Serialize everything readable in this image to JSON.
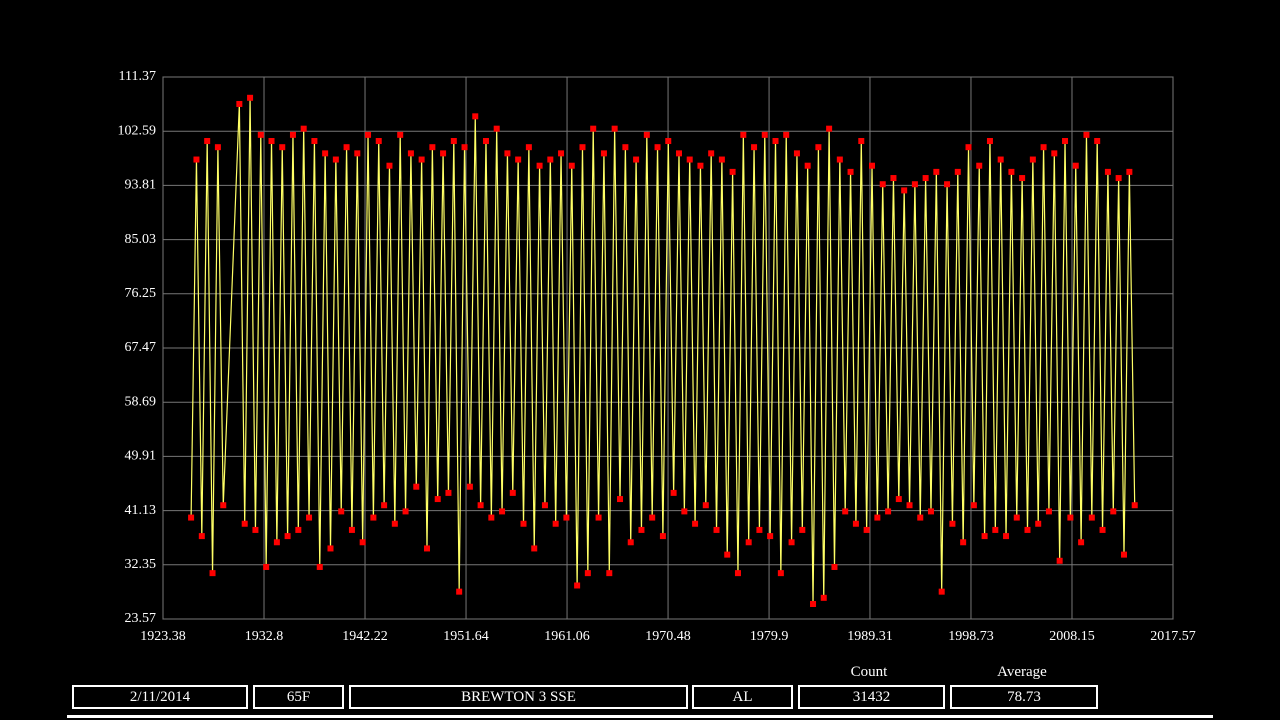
{
  "chart_data": {
    "type": "line",
    "x": [
      1926.0,
      1926.5,
      1927.0,
      1927.5,
      1928.0,
      1928.5,
      1929.0,
      1930.5,
      1931.0,
      1931.5,
      1932.0,
      1932.5,
      1933.0,
      1933.5,
      1934.0,
      1934.5,
      1935.0,
      1935.5,
      1936.0,
      1936.5,
      1937.0,
      1937.5,
      1938.0,
      1938.5,
      1939.0,
      1939.5,
      1940.0,
      1940.5,
      1941.0,
      1941.5,
      1942.0,
      1942.5,
      1943.0,
      1943.5,
      1944.0,
      1944.5,
      1945.0,
      1945.5,
      1946.0,
      1946.5,
      1947.0,
      1947.5,
      1948.0,
      1948.5,
      1949.0,
      1949.5,
      1950.0,
      1950.5,
      1951.0,
      1951.5,
      1952.0,
      1952.5,
      1953.0,
      1953.5,
      1954.0,
      1954.5,
      1955.0,
      1955.5,
      1956.0,
      1956.5,
      1957.0,
      1957.5,
      1958.0,
      1958.5,
      1959.0,
      1959.5,
      1960.0,
      1960.5,
      1961.0,
      1961.5,
      1962.0,
      1962.5,
      1963.0,
      1963.5,
      1964.0,
      1964.5,
      1965.0,
      1965.5,
      1966.0,
      1966.5,
      1967.0,
      1967.5,
      1968.0,
      1968.5,
      1969.0,
      1969.5,
      1970.0,
      1970.5,
      1971.0,
      1971.5,
      1972.0,
      1972.5,
      1973.0,
      1973.5,
      1974.0,
      1974.5,
      1975.0,
      1975.5,
      1976.0,
      1976.5,
      1977.0,
      1977.5,
      1978.0,
      1978.5,
      1979.0,
      1979.5,
      1980.0,
      1980.5,
      1981.0,
      1981.5,
      1982.0,
      1982.5,
      1983.0,
      1983.5,
      1984.0,
      1984.5,
      1985.0,
      1985.5,
      1986.0,
      1986.5,
      1987.0,
      1987.5,
      1988.0,
      1988.5,
      1989.0,
      1989.5,
      1990.0,
      1990.5,
      1991.0,
      1991.5,
      1992.0,
      1992.5,
      1993.0,
      1993.5,
      1994.0,
      1994.5,
      1995.0,
      1995.5,
      1996.0,
      1996.5,
      1997.0,
      1997.5,
      1998.0,
      1998.5,
      1999.0,
      1999.5,
      2000.0,
      2000.5,
      2001.0,
      2001.5,
      2002.0,
      2002.5,
      2003.0,
      2003.5,
      2004.0,
      2004.5,
      2005.0,
      2005.5,
      2006.0,
      2006.5,
      2007.0,
      2007.5,
      2008.0,
      2008.5,
      2009.0,
      2009.5,
      2010.0,
      2010.5,
      2011.0,
      2011.5,
      2012.0,
      2012.5,
      2013.0,
      2013.5,
      2014.0
    ],
    "series": [
      {
        "color": "#ffff66",
        "marker_color": "#ff0000",
        "values": [
          40,
          98,
          37,
          101,
          31,
          100,
          42,
          107,
          39,
          108,
          38,
          102,
          32,
          101,
          36,
          100,
          37,
          102,
          38,
          103,
          40,
          101,
          32,
          99,
          35,
          98,
          41,
          100,
          38,
          99,
          36,
          102,
          40,
          101,
          42,
          97,
          39,
          102,
          41,
          99,
          45,
          98,
          35,
          100,
          43,
          99,
          44,
          101,
          28,
          100,
          45,
          105,
          42,
          101,
          40,
          103,
          41,
          99,
          44,
          98,
          39,
          100,
          35,
          97,
          42,
          98,
          39,
          99,
          40,
          97,
          29,
          100,
          31,
          103,
          40,
          99,
          31,
          103,
          43,
          100,
          36,
          98,
          38,
          102,
          40,
          100,
          37,
          101,
          44,
          99,
          41,
          98,
          39,
          97,
          42,
          99,
          38,
          98,
          34,
          96,
          31,
          102,
          36,
          100,
          38,
          102,
          37,
          101,
          31,
          102,
          36,
          99,
          38,
          97,
          26,
          100,
          27,
          103,
          32,
          98,
          41,
          96,
          39,
          101,
          38,
          97,
          40,
          94,
          41,
          95,
          43,
          93,
          42,
          94,
          40,
          95,
          41,
          96,
          28,
          94,
          39,
          96,
          36,
          100,
          42,
          97,
          37,
          101,
          38,
          98,
          37,
          96,
          40,
          95,
          38,
          98,
          39,
          100,
          41,
          99,
          33,
          101,
          40,
          97,
          36,
          102,
          40,
          101,
          38,
          96,
          41,
          95,
          34,
          96,
          42
        ]
      }
    ],
    "xlim": [
      1923.38,
      2017.57
    ],
    "ylim": [
      23.57,
      111.37
    ],
    "xticks": [
      1923.38,
      1932.8,
      1942.22,
      1951.64,
      1961.06,
      1970.48,
      1979.9,
      1989.31,
      1998.73,
      2008.15,
      2017.57
    ],
    "yticks": [
      23.57,
      32.35,
      41.13,
      49.91,
      58.69,
      67.47,
      76.25,
      85.03,
      93.81,
      102.59,
      111.37
    ],
    "grid": true
  },
  "footer": {
    "date": "2/11/2014",
    "temperature": "65F",
    "station": "BREWTON 3 SSE",
    "state": "AL",
    "count_label": "Count",
    "count": "31432",
    "average_label": "Average",
    "average": "78.73"
  }
}
